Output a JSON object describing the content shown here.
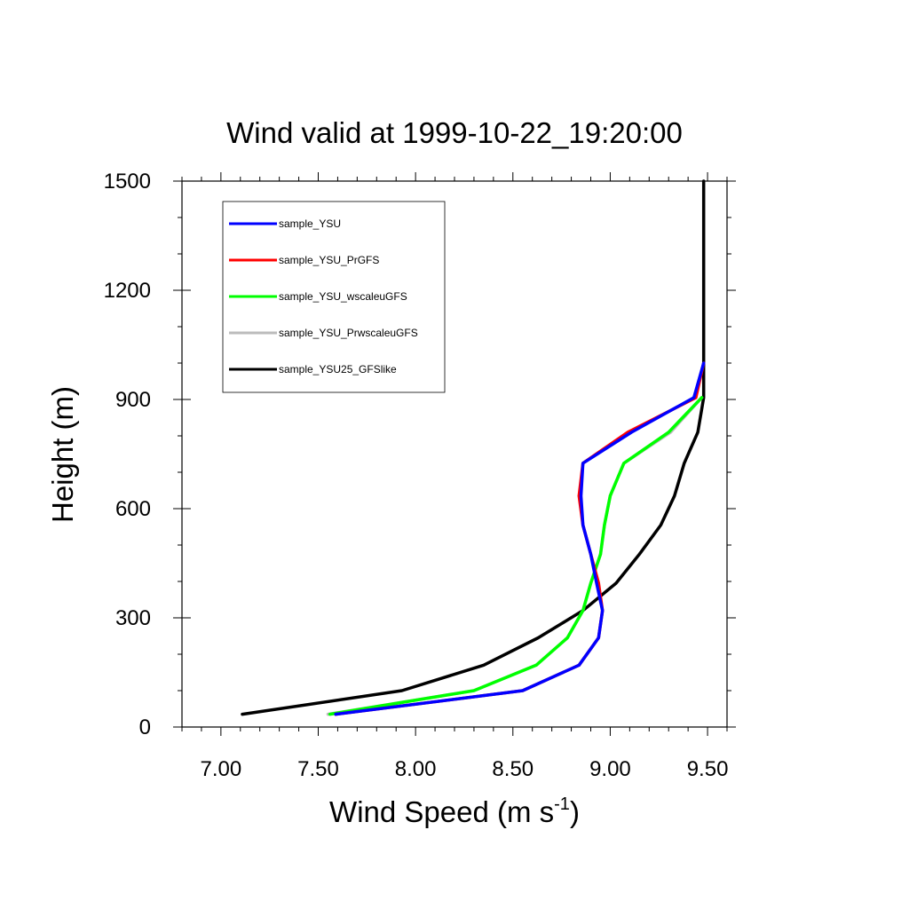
{
  "chart_data": {
    "type": "line",
    "title": "Wind valid at 1999-10-22_19:20:00",
    "xlabel": "Wind Speed (m s",
    "xlabel_superscript": "-1",
    "xlabel_suffix": ")",
    "ylabel": "Height (m)",
    "xlim": [
      6.8,
      9.6
    ],
    "ylim": [
      0,
      1500
    ],
    "x_ticks": [
      7.0,
      7.5,
      8.0,
      8.5,
      9.0,
      9.5
    ],
    "x_tick_labels": [
      "7.00",
      "7.50",
      "8.00",
      "8.50",
      "9.00",
      "9.50"
    ],
    "x_minor_step": 0.1,
    "y_ticks": [
      0,
      300,
      600,
      900,
      1200,
      1500
    ],
    "y_tick_labels": [
      "0",
      "300",
      "600",
      "900",
      "1200",
      "1500"
    ],
    "y_minor_step": 100,
    "grid": false,
    "legend_position": "top-left",
    "series": [
      {
        "name": "sample_YSU25_GFSlike",
        "color": "#000000",
        "points": [
          [
            7.11,
            35
          ],
          [
            7.93,
            100
          ],
          [
            8.35,
            170
          ],
          [
            8.63,
            245
          ],
          [
            8.86,
            320
          ],
          [
            9.03,
            395
          ],
          [
            9.15,
            475
          ],
          [
            9.26,
            555
          ],
          [
            9.33,
            635
          ],
          [
            9.38,
            725
          ],
          [
            9.45,
            810
          ],
          [
            9.48,
            905
          ],
          [
            9.48,
            1000
          ],
          [
            9.48,
            1100
          ],
          [
            9.48,
            1200
          ],
          [
            9.48,
            1300
          ],
          [
            9.48,
            1400
          ],
          [
            9.48,
            1500
          ]
        ]
      },
      {
        "name": "sample_YSU_PrwscaleuGFS",
        "color": "#bbbbbb",
        "points": [
          [
            7.55,
            35
          ],
          [
            8.3,
            100
          ],
          [
            8.62,
            170
          ],
          [
            8.78,
            245
          ],
          [
            8.86,
            320
          ],
          [
            8.9,
            395
          ],
          [
            8.95,
            475
          ],
          [
            8.97,
            555
          ],
          [
            9.0,
            635
          ],
          [
            9.07,
            725
          ],
          [
            9.31,
            810
          ],
          [
            9.47,
            905
          ]
        ]
      },
      {
        "name": "sample_YSU_wscaleuGFS",
        "color": "#00ff00",
        "points": [
          [
            7.56,
            35
          ],
          [
            8.3,
            100
          ],
          [
            8.62,
            170
          ],
          [
            8.78,
            245
          ],
          [
            8.86,
            320
          ],
          [
            8.9,
            395
          ],
          [
            8.95,
            475
          ],
          [
            8.97,
            555
          ],
          [
            9.0,
            635
          ],
          [
            9.07,
            725
          ],
          [
            9.3,
            810
          ],
          [
            9.47,
            905
          ]
        ]
      },
      {
        "name": "sample_YSU_PrGFS",
        "color": "#ff0000",
        "points": [
          [
            7.59,
            35
          ],
          [
            8.55,
            100
          ],
          [
            8.84,
            170
          ],
          [
            8.94,
            245
          ],
          [
            8.96,
            320
          ],
          [
            8.94,
            395
          ],
          [
            8.9,
            475
          ],
          [
            8.86,
            555
          ],
          [
            8.84,
            635
          ],
          [
            8.86,
            725
          ],
          [
            9.09,
            810
          ],
          [
            9.44,
            905
          ],
          [
            9.48,
            1000
          ]
        ]
      },
      {
        "name": "sample_YSU",
        "color": "#0000ff",
        "points": [
          [
            7.59,
            35
          ],
          [
            8.55,
            100
          ],
          [
            8.84,
            170
          ],
          [
            8.94,
            245
          ],
          [
            8.96,
            320
          ],
          [
            8.93,
            395
          ],
          [
            8.9,
            475
          ],
          [
            8.86,
            555
          ],
          [
            8.85,
            635
          ],
          [
            8.86,
            725
          ],
          [
            9.11,
            810
          ],
          [
            9.43,
            905
          ],
          [
            9.48,
            1000
          ]
        ]
      }
    ]
  }
}
